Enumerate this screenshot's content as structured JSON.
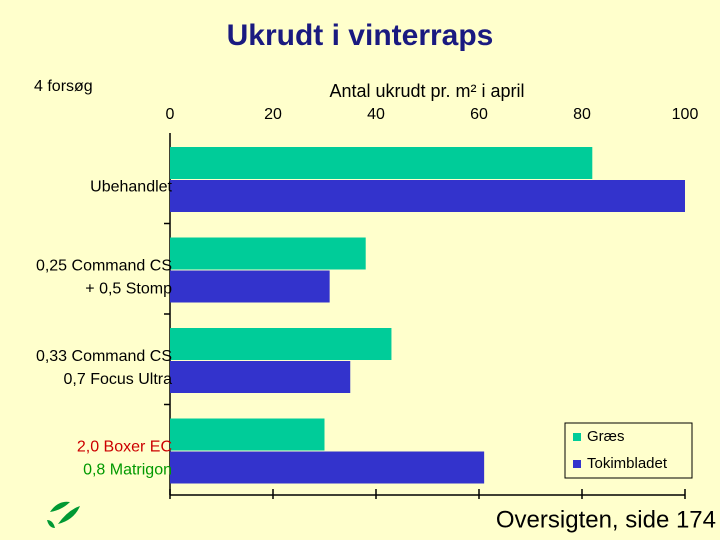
{
  "chart_data": {
    "type": "bar",
    "orientation": "horizontal",
    "title": "Ukrudt i vinterraps",
    "subtitle": "4 forsøg",
    "x_label": "Antal ukrudt pr. m² i april",
    "categories": [
      [
        "Ubehandlet"
      ],
      [
        "0,25 Command CS",
        "+ 0,5 Stomp"
      ],
      [
        "0,33 Command CS",
        "0,7 Focus Ultra"
      ],
      [
        "2,0 Boxer EC",
        "0,8 Matrigon"
      ]
    ],
    "category_colors": [
      [
        "#000000"
      ],
      [
        "#000000",
        "#000000"
      ],
      [
        "#000000",
        "#000000"
      ],
      [
        "#cc0000",
        "#009900"
      ]
    ],
    "series": [
      {
        "name": "Græs",
        "color": "#00cc99",
        "values": [
          82,
          38,
          43,
          30
        ]
      },
      {
        "name": "Tokimbladet",
        "color": "#3333cc",
        "values": [
          100,
          31,
          35,
          61
        ]
      }
    ],
    "xlim": [
      0,
      100
    ],
    "xticks": [
      0,
      20,
      40,
      60,
      80,
      100
    ],
    "legend": "bottom-right",
    "footer": "Oversigten, side 174"
  }
}
